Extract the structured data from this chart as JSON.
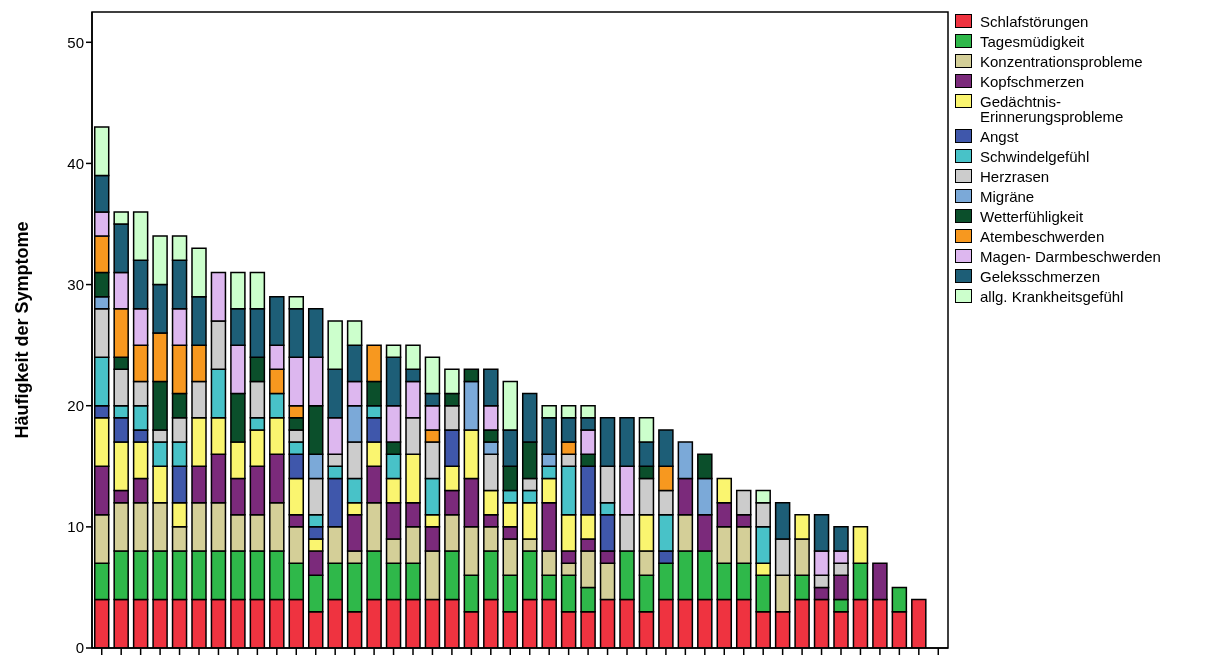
{
  "chart_data": {
    "type": "bar",
    "stacked": true,
    "ylabel": "Häufigkeit der Symptome",
    "ylim": [
      0,
      52.5
    ],
    "yticks": [
      0,
      10,
      20,
      30,
      40,
      50
    ],
    "legend": "right",
    "categories": [
      null,
      null,
      null,
      null,
      null,
      null,
      null,
      null,
      null,
      null,
      null,
      null,
      null,
      null,
      null,
      null,
      null,
      null,
      null,
      null,
      null,
      null,
      null,
      null,
      null,
      null,
      null,
      null,
      null,
      null,
      null,
      null,
      null,
      null,
      null,
      null,
      null,
      null,
      null,
      null,
      null,
      null,
      null,
      null
    ],
    "series": [
      {
        "name": "Schlafstörungen",
        "color": "#ef3340",
        "values": [
          4,
          4,
          4,
          4,
          4,
          4,
          4,
          4,
          4,
          4,
          4,
          3,
          4,
          3,
          4,
          4,
          4,
          4,
          4,
          3,
          4,
          3,
          4,
          4,
          3,
          3,
          4,
          4,
          3,
          4,
          4,
          4,
          4,
          4,
          3,
          3,
          4,
          4,
          3,
          4,
          4,
          3,
          4,
          null
        ]
      },
      {
        "name": "Tagesmüdigkeit",
        "color": "#2fb84a",
        "values": [
          3,
          4,
          4,
          4,
          4,
          4,
          4,
          4,
          4,
          4,
          3,
          3,
          3,
          4,
          4,
          3,
          3,
          0,
          4,
          3,
          4,
          3,
          4,
          2,
          3,
          2,
          0,
          4,
          3,
          3,
          4,
          4,
          3,
          3,
          3,
          0,
          2,
          0,
          1,
          3,
          0,
          2,
          0,
          null
        ]
      },
      {
        "name": "Konzentrationsprobleme",
        "color": "#d4cf98",
        "values": [
          4,
          4,
          4,
          4,
          2,
          4,
          4,
          3,
          3,
          4,
          3,
          0,
          3,
          1,
          4,
          2,
          3,
          4,
          3,
          4,
          2,
          3,
          1,
          2,
          1,
          3,
          3,
          0,
          2,
          0,
          3,
          0,
          3,
          3,
          0,
          3,
          3,
          0,
          0,
          0,
          0,
          0,
          0,
          null
        ]
      },
      {
        "name": "Kopfschmerzen",
        "color": "#7b2a7b",
        "values": [
          4,
          1,
          2,
          0,
          0,
          3,
          4,
          3,
          4,
          4,
          1,
          2,
          0,
          3,
          3,
          3,
          2,
          2,
          2,
          4,
          1,
          1,
          0,
          4,
          1,
          1,
          1,
          0,
          0,
          0,
          3,
          3,
          2,
          1,
          0,
          0,
          0,
          1,
          2,
          0,
          3,
          0,
          0,
          null
        ]
      },
      {
        "name": "Gedächtnis- Erinnerungsprobleme",
        "color": "#faf56f",
        "values": [
          4,
          4,
          3,
          3,
          2,
          4,
          3,
          3,
          3,
          3,
          3,
          1,
          0,
          1,
          2,
          2,
          4,
          1,
          2,
          4,
          2,
          2,
          3,
          2,
          3,
          2,
          0,
          0,
          3,
          0,
          0,
          0,
          2,
          0,
          1,
          0,
          2,
          0,
          0,
          3,
          0,
          0,
          0,
          null
        ]
      },
      {
        "name": "Angst",
        "color": "#3f57ab",
        "values": [
          1,
          2,
          1,
          0,
          3,
          0,
          0,
          0,
          0,
          0,
          2,
          1,
          4,
          0,
          2,
          0,
          0,
          0,
          3,
          0,
          0,
          0,
          0,
          0,
          0,
          4,
          3,
          0,
          0,
          1,
          0,
          0,
          0,
          0,
          0,
          0,
          0,
          0,
          0,
          0,
          0,
          0,
          0,
          null
        ]
      },
      {
        "name": "Schwindelgefühl",
        "color": "#48c2c8",
        "values": [
          4,
          1,
          2,
          2,
          2,
          0,
          4,
          0,
          1,
          2,
          1,
          1,
          1,
          2,
          1,
          2,
          0,
          3,
          0,
          0,
          0,
          1,
          1,
          1,
          4,
          0,
          1,
          0,
          0,
          3,
          0,
          0,
          0,
          0,
          3,
          0,
          0,
          0,
          0,
          0,
          0,
          0,
          0,
          null
        ]
      },
      {
        "name": "Herzrasen",
        "color": "#cccccc",
        "values": [
          4,
          3,
          2,
          1,
          2,
          3,
          4,
          0,
          3,
          0,
          1,
          3,
          1,
          3,
          0,
          0,
          3,
          3,
          2,
          0,
          3,
          0,
          1,
          0,
          1,
          0,
          3,
          3,
          3,
          2,
          0,
          0,
          0,
          2,
          2,
          3,
          0,
          1,
          1,
          0,
          0,
          0,
          0,
          null
        ]
      },
      {
        "name": "Migräne",
        "color": "#7ba9d8",
        "values": [
          1,
          0,
          0,
          0,
          0,
          0,
          0,
          0,
          0,
          0,
          0,
          2,
          0,
          3,
          0,
          0,
          0,
          0,
          0,
          4,
          1,
          0,
          0,
          1,
          0,
          0,
          0,
          0,
          0,
          0,
          3,
          3,
          0,
          0,
          0,
          0,
          0,
          0,
          0,
          0,
          0,
          0,
          0,
          null
        ]
      },
      {
        "name": "Wetterfühligkeit",
        "color": "#0b4f2b",
        "values": [
          2,
          1,
          0,
          4,
          2,
          0,
          0,
          4,
          2,
          0,
          1,
          4,
          0,
          0,
          2,
          1,
          0,
          0,
          1,
          1,
          1,
          2,
          3,
          0,
          0,
          1,
          0,
          0,
          1,
          0,
          0,
          2,
          0,
          0,
          0,
          0,
          0,
          0,
          0,
          0,
          0,
          0,
          0,
          null
        ]
      },
      {
        "name": "Atembeschwerden",
        "color": "#f7981f",
        "values": [
          3,
          4,
          3,
          4,
          4,
          3,
          0,
          0,
          0,
          2,
          1,
          0,
          0,
          0,
          3,
          0,
          0,
          1,
          0,
          0,
          0,
          0,
          0,
          0,
          1,
          0,
          0,
          0,
          0,
          2,
          0,
          0,
          0,
          0,
          0,
          0,
          0,
          0,
          0,
          0,
          0,
          0,
          0,
          null
        ]
      },
      {
        "name": "Magen- Darmbeschwerden",
        "color": "#ddb7ef",
        "values": [
          2,
          3,
          3,
          0,
          3,
          0,
          4,
          4,
          0,
          2,
          4,
          4,
          3,
          2,
          0,
          3,
          3,
          2,
          0,
          0,
          2,
          0,
          0,
          0,
          0,
          2,
          0,
          4,
          0,
          0,
          0,
          0,
          0,
          0,
          0,
          0,
          0,
          2,
          1,
          0,
          0,
          0,
          0,
          null
        ]
      },
      {
        "name": "Geleksschmerzen",
        "color": "#1d5e77",
        "values": [
          3,
          4,
          4,
          4,
          4,
          4,
          0,
          3,
          4,
          4,
          4,
          4,
          4,
          3,
          0,
          4,
          1,
          1,
          0,
          0,
          3,
          3,
          4,
          3,
          2,
          1,
          4,
          4,
          2,
          3,
          0,
          0,
          0,
          0,
          0,
          3,
          0,
          3,
          2,
          0,
          0,
          0,
          0,
          null
        ]
      },
      {
        "name": "allg. Krankheitsgefühl",
        "color": "#ccffcc",
        "values": [
          4,
          1,
          4,
          4,
          2,
          4,
          0,
          3,
          3,
          0,
          1,
          0,
          4,
          2,
          0,
          1,
          2,
          3,
          2,
          0,
          0,
          4,
          0,
          1,
          1,
          1,
          0,
          0,
          2,
          0,
          0,
          0,
          0,
          0,
          1,
          0,
          0,
          0,
          0,
          0,
          0,
          0,
          0,
          null
        ]
      }
    ]
  }
}
